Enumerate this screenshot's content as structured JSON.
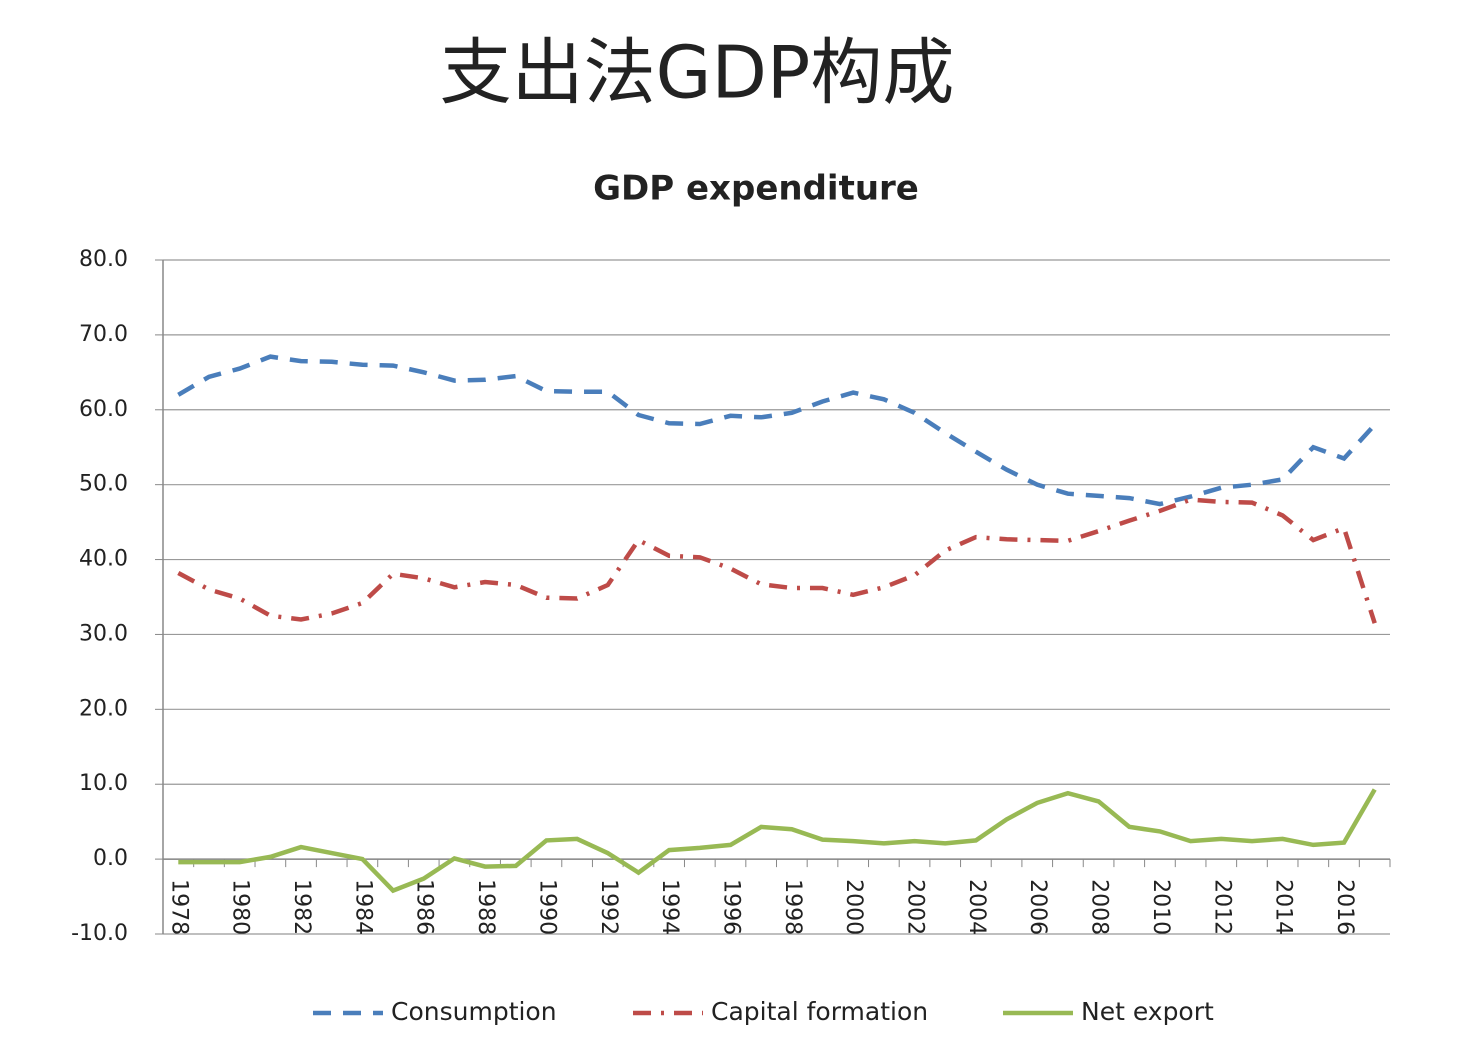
{
  "chart_data": {
    "type": "line",
    "title": "支出法GDP构成",
    "subtitle": "GDP expenditure",
    "categories": [
      "1978",
      null,
      "1980",
      null,
      "1982",
      null,
      "1984",
      null,
      "1986",
      null,
      "1988",
      null,
      "1990",
      null,
      "1992",
      null,
      "1994",
      null,
      "1996",
      null,
      "1998",
      null,
      "2000",
      null,
      "2002",
      null,
      "2004",
      null,
      "2006",
      null,
      "2008",
      null,
      "2010",
      null,
      "2012",
      null,
      "2014",
      null,
      "2016",
      null
    ],
    "series": [
      {
        "name": "Consumption",
        "color": "#4a7ebb",
        "line_style": "dashed",
        "values": [
          62.0,
          64.4,
          65.5,
          67.1,
          66.5,
          66.4,
          66.0,
          65.9,
          65.0,
          63.9,
          64.0,
          64.5,
          62.5,
          62.4,
          62.4,
          59.3,
          58.2,
          58.1,
          59.2,
          59.0,
          59.6,
          61.1,
          62.3,
          61.4,
          59.6,
          56.9,
          54.4,
          52.0,
          50.0,
          48.8,
          48.5,
          48.2,
          47.4,
          48.4,
          49.6,
          50.0,
          50.7,
          55.0,
          53.5,
          58.0
        ]
      },
      {
        "name": "Capital formation",
        "color": "#be4b48",
        "line_style": "dashdot",
        "values": [
          38.2,
          36.0,
          34.8,
          32.5,
          32.0,
          32.8,
          34.2,
          38.1,
          37.5,
          36.3,
          37.0,
          36.6,
          34.9,
          34.8,
          36.6,
          42.6,
          40.5,
          40.3,
          38.8,
          36.7,
          36.2,
          36.2,
          35.3,
          36.3,
          37.9,
          41.2,
          43.0,
          42.7,
          42.6,
          42.5,
          43.8,
          45.2,
          46.5,
          48.0,
          47.7,
          47.6,
          45.9,
          42.6,
          44.2,
          31.5
        ]
      },
      {
        "name": "Net export",
        "color": "#98b954",
        "line_style": "solid",
        "values": [
          -0.4,
          -0.4,
          -0.4,
          0.3,
          1.6,
          0.8,
          0.0,
          -4.2,
          -2.6,
          0.1,
          -1.0,
          -0.9,
          2.5,
          2.7,
          0.8,
          -1.8,
          1.2,
          1.5,
          1.9,
          4.3,
          4.0,
          2.6,
          2.4,
          2.1,
          2.4,
          2.1,
          2.5,
          5.3,
          7.5,
          8.8,
          7.7,
          4.3,
          3.7,
          2.4,
          2.7,
          2.4,
          2.7,
          1.9,
          2.2,
          9.3
        ]
      }
    ],
    "ylim": [
      -10,
      80
    ],
    "yticks": [
      {
        "value": -10,
        "label": "-10.0"
      },
      {
        "value": 0,
        "label": "0.0"
      },
      {
        "value": 10,
        "label": "10.0"
      },
      {
        "value": 20,
        "label": "20.0"
      },
      {
        "value": 30,
        "label": "30.0"
      },
      {
        "value": 40,
        "label": "40.0"
      },
      {
        "value": 50,
        "label": "50.0"
      },
      {
        "value": 60,
        "label": "60.0"
      },
      {
        "value": 70,
        "label": "70.0"
      },
      {
        "value": 80,
        "label": "80.0"
      }
    ],
    "grid": true,
    "legend": "bottom"
  }
}
